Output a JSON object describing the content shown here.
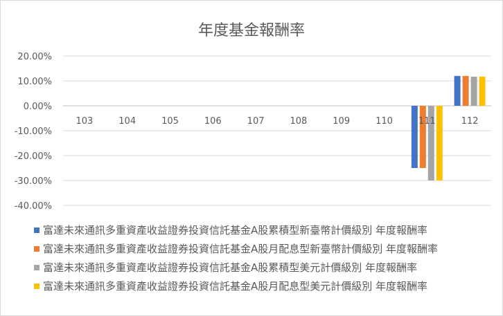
{
  "chart_data": {
    "type": "bar",
    "title": "年度基金報酬率",
    "xlabel": "",
    "ylabel": "",
    "ylim": [
      -0.4,
      0.2
    ],
    "y_ticks": [
      "20.00%",
      "10.00%",
      "0.00%",
      "-10.00%",
      "-20.00%",
      "-30.00%",
      "-40.00%"
    ],
    "grid": true,
    "legend_position": "bottom",
    "categories": [
      "103",
      "104",
      "105",
      "106",
      "107",
      "108",
      "109",
      "110",
      "111",
      "112"
    ],
    "series": [
      {
        "name": "富達未來通訊多重資產收益證券投資信託基金A股累積型新臺幣計價級別 年度報酬率",
        "color": "#4472c4",
        "values": [
          null,
          null,
          null,
          null,
          null,
          null,
          null,
          null,
          -0.25,
          0.12
        ]
      },
      {
        "name": "富達未來通訊多重資產收益證券投資信託基金A股月配息型新臺幣計價級別 年度報酬率",
        "color": "#ed7d31",
        "values": [
          null,
          null,
          null,
          null,
          null,
          null,
          null,
          null,
          -0.25,
          0.12
        ]
      },
      {
        "name": "富達未來通訊多重資產收益證券投資信託基金A股累積型美元計價級別 年度報酬率",
        "color": "#a5a5a5",
        "values": [
          null,
          null,
          null,
          null,
          null,
          null,
          null,
          null,
          -0.3,
          0.117
        ]
      },
      {
        "name": "富達未來通訊多重資產收益證券投資信託基金A股月配息型美元計價級別 年度報酬率",
        "color": "#ffc000",
        "values": [
          null,
          null,
          null,
          null,
          null,
          null,
          null,
          null,
          -0.3,
          0.117
        ]
      }
    ]
  }
}
